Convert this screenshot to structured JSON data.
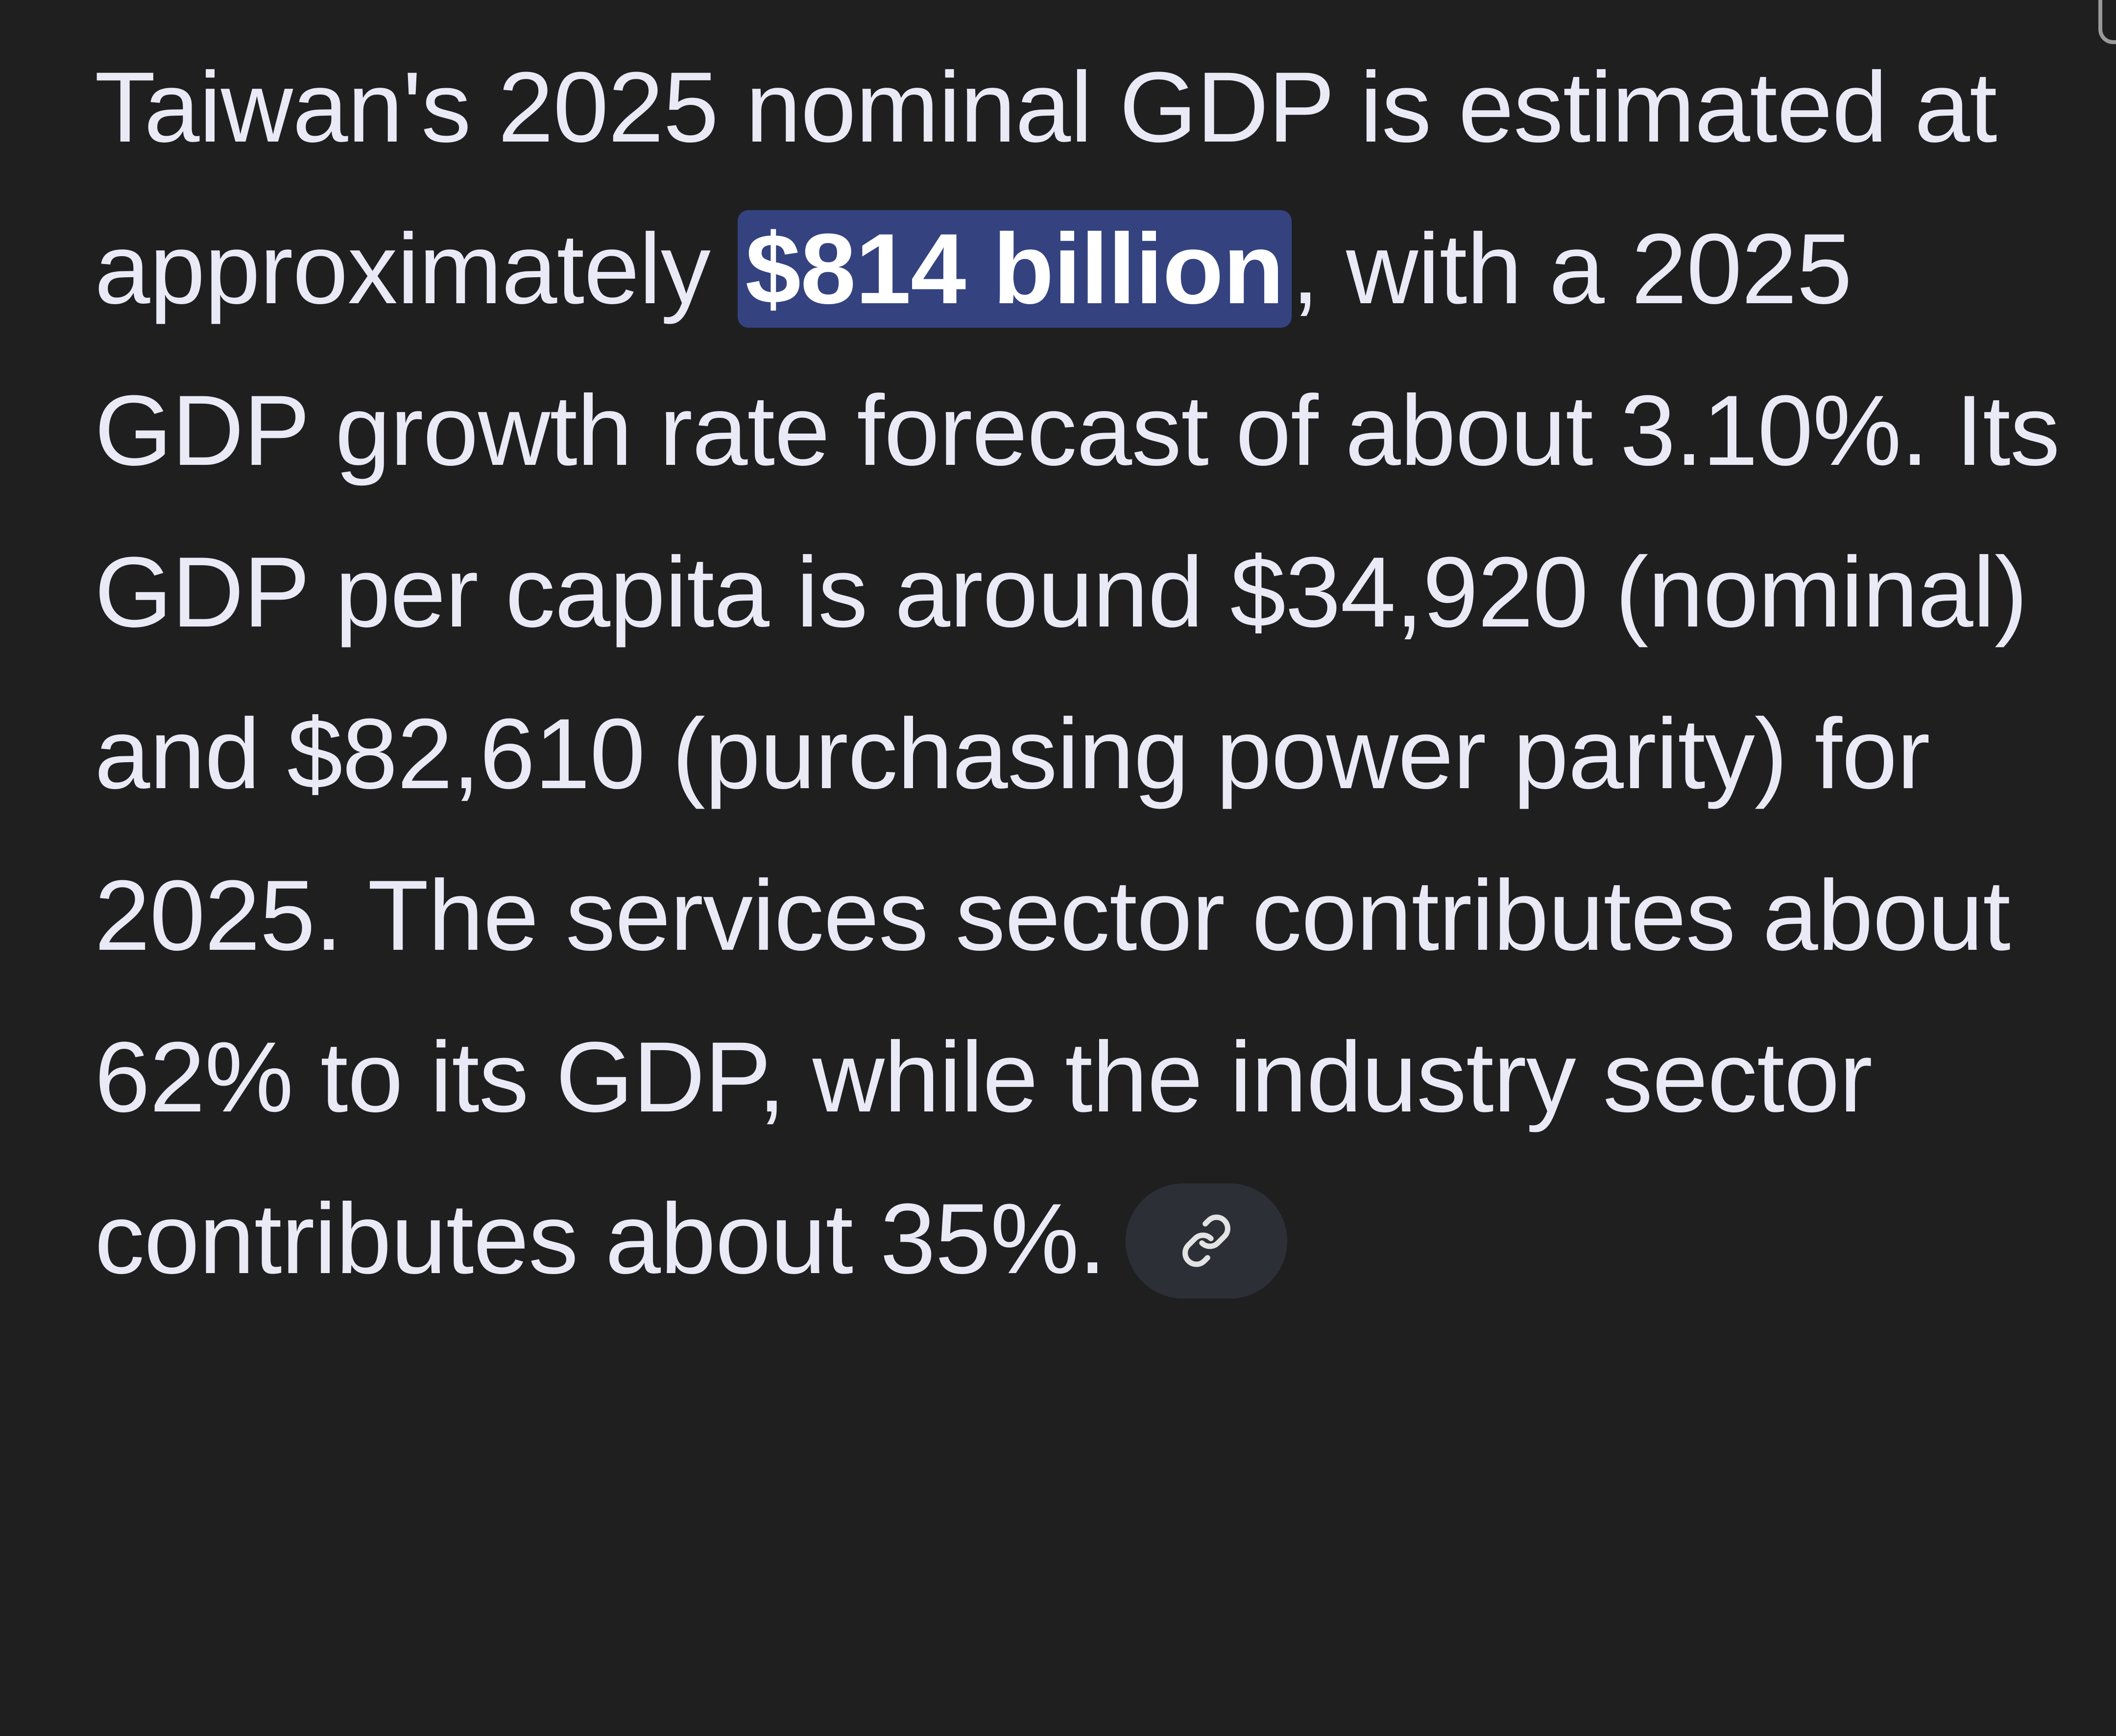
{
  "answer": {
    "text_before": "Taiwan's 2025 nominal GDP is estimated at approximately ",
    "highlight": "$814 billion",
    "text_after": ", with a 2025 GDP growth rate forecast of about 3.10%. Its GDP per capita is around $34,920 (nominal) and $82,610 (purchasing power parity) for 2025. The services sector contributes about 62% to its GDP, while the industry sector contributes about 35%.",
    "highlight_color": "#34437f"
  },
  "source_chip": {
    "icon": "link-icon"
  }
}
